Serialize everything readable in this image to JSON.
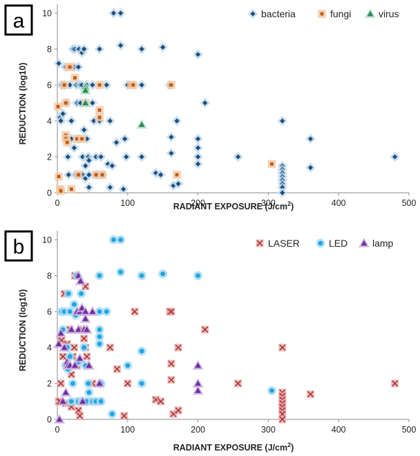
{
  "chart_data": [
    {
      "type": "scatter",
      "panel_label": "a",
      "xlabel": "RADIANT EXPOSURE (J/cm",
      "xlabel_sup": "2",
      "xlabel_end": ")",
      "ylabel": "REDUCTION (log10)",
      "xlim": [
        0,
        500
      ],
      "ylim": [
        0,
        10.5
      ],
      "xticks": [
        "0",
        "100",
        "200",
        "300",
        "400",
        "500"
      ],
      "yticks": [
        "0",
        "2",
        "4",
        "6",
        "8",
        "10"
      ],
      "grid": false,
      "legend_position": "top-right",
      "series": [
        {
          "name": "bacteria",
          "marker": "diamond",
          "color": "#1f4e79",
          "halo": "#bcd7ec",
          "points": [
            [
              2,
              7.2
            ],
            [
              4,
              4.2
            ],
            [
              5,
              4.0
            ],
            [
              6,
              6.0
            ],
            [
              8,
              4.4
            ],
            [
              10,
              6.0
            ],
            [
              12,
              7.0
            ],
            [
              13,
              5.0
            ],
            [
              15,
              3.0
            ],
            [
              15,
              2.0
            ],
            [
              16,
              1.0
            ],
            [
              18,
              6.0
            ],
            [
              20,
              4.0
            ],
            [
              20,
              3.0
            ],
            [
              22,
              8.0
            ],
            [
              24,
              7.0
            ],
            [
              24,
              2.5
            ],
            [
              25,
              8.0
            ],
            [
              26,
              1.0
            ],
            [
              27,
              6.0
            ],
            [
              28,
              5.0
            ],
            [
              30,
              7.0
            ],
            [
              30,
              3.0
            ],
            [
              30,
              1.0
            ],
            [
              31,
              8.0
            ],
            [
              32,
              6.0
            ],
            [
              33,
              5.0
            ],
            [
              35,
              7.8
            ],
            [
              35,
              6.0
            ],
            [
              36,
              2.0
            ],
            [
              36,
              1.0
            ],
            [
              38,
              8.0
            ],
            [
              38,
              3.5
            ],
            [
              40,
              1.5
            ],
            [
              40,
              0.8
            ],
            [
              42,
              6.0
            ],
            [
              42,
              3.0
            ],
            [
              44,
              2.0
            ],
            [
              45,
              1.8
            ],
            [
              45,
              1.0
            ],
            [
              45,
              0.3
            ],
            [
              50,
              6.0
            ],
            [
              50,
              5.0
            ],
            [
              52,
              4.0
            ],
            [
              55,
              2.0
            ],
            [
              56,
              1.0
            ],
            [
              60,
              8.0
            ],
            [
              60,
              4.0
            ],
            [
              62,
              2.0
            ],
            [
              64,
              1.0
            ],
            [
              70,
              6.0
            ],
            [
              72,
              1.6
            ],
            [
              75,
              4.0
            ],
            [
              75,
              0.3
            ],
            [
              78,
              1.5
            ],
            [
              80,
              10.0
            ],
            [
              84,
              2.8
            ],
            [
              90,
              8.2
            ],
            [
              90,
              10.0
            ],
            [
              94,
              0.2
            ],
            [
              96,
              3.0
            ],
            [
              98,
              2.0
            ],
            [
              100,
              6.0
            ],
            [
              120,
              8.0
            ],
            [
              120,
              6.0
            ],
            [
              120,
              2.0
            ],
            [
              140,
              1.1
            ],
            [
              147,
              1.0
            ],
            [
              150,
              8.1
            ],
            [
              160,
              6.0
            ],
            [
              162,
              3.1
            ],
            [
              162,
              2.2
            ],
            [
              165,
              0.4
            ],
            [
              170,
              4.0
            ],
            [
              172,
              0.5
            ],
            [
              200,
              7.7
            ],
            [
              200,
              3.0
            ],
            [
              200,
              2.5
            ],
            [
              200,
              2.0
            ],
            [
              200,
              1.6
            ],
            [
              210,
              5.0
            ],
            [
              257,
              2.0
            ],
            [
              320,
              4.0
            ],
            [
              320,
              1.5
            ],
            [
              320,
              1.3
            ],
            [
              320,
              1.1
            ],
            [
              320,
              0.9
            ],
            [
              320,
              0.7
            ],
            [
              320,
              0.5
            ],
            [
              320,
              0.3
            ],
            [
              320,
              0.0
            ],
            [
              360,
              3.0
            ],
            [
              360,
              1.4
            ],
            [
              480,
              2.0
            ]
          ]
        },
        {
          "name": "fungi",
          "marker": "square",
          "color": "#c55a11",
          "halo": "#f2c9a8",
          "points": [
            [
              1,
              4.8
            ],
            [
              2,
              0.9
            ],
            [
              4,
              0.2
            ],
            [
              5,
              0.1
            ],
            [
              10,
              6.0
            ],
            [
              12,
              5.0
            ],
            [
              12,
              3.2
            ],
            [
              12,
              3.0
            ],
            [
              14,
              2.8
            ],
            [
              16,
              7.0
            ],
            [
              18,
              7.0
            ],
            [
              20,
              0.2
            ],
            [
              25,
              6.4
            ],
            [
              28,
              3.0
            ],
            [
              30,
              1.0
            ],
            [
              35,
              3.0
            ],
            [
              40,
              5.0
            ],
            [
              55,
              1.0
            ],
            [
              60,
              6.0
            ],
            [
              60,
              4.6
            ],
            [
              60,
              4.2
            ],
            [
              64,
              1.0
            ],
            [
              105,
              6.0
            ],
            [
              108,
              6.0
            ],
            [
              162,
              6.0
            ],
            [
              170,
              1.0
            ],
            [
              305,
              1.6
            ]
          ]
        },
        {
          "name": "virus",
          "marker": "triangle",
          "color": "#2e8b57",
          "halo": "#b6e3c8",
          "points": [
            [
              40,
              5.9
            ],
            [
              40,
              5.7
            ],
            [
              40,
              5.0
            ],
            [
              120,
              3.8
            ]
          ]
        }
      ]
    },
    {
      "type": "scatter",
      "panel_label": "b",
      "xlabel": "RADIANT EXPOSURE (J/cm",
      "xlabel_sup": "2",
      "xlabel_end": ")",
      "ylabel": "REDUCTION (log10)",
      "xlim": [
        0,
        500
      ],
      "ylim": [
        0,
        10.5
      ],
      "xticks": [
        "0",
        "100",
        "200",
        "300",
        "400",
        "500"
      ],
      "yticks": [
        "0",
        "2",
        "4",
        "6",
        "8",
        "10"
      ],
      "grid": false,
      "legend_position": "top-right",
      "series": [
        {
          "name": "LASER",
          "marker": "x",
          "color": "#a9373b",
          "halo": "#e8a9a6",
          "points": [
            [
              2,
              1.0
            ],
            [
              4,
              1.0
            ],
            [
              5,
              2.0
            ],
            [
              6,
              4.4
            ],
            [
              8,
              3.5
            ],
            [
              10,
              7.0
            ],
            [
              12,
              0.9
            ],
            [
              14,
              4.2
            ],
            [
              15,
              3.0
            ],
            [
              18,
              5.0
            ],
            [
              20,
              2.5
            ],
            [
              20,
              0.7
            ],
            [
              22,
              3.5
            ],
            [
              24,
              4.0
            ],
            [
              25,
              8.0
            ],
            [
              28,
              3.0
            ],
            [
              30,
              1.0
            ],
            [
              30,
              0.5
            ],
            [
              32,
              0.2
            ],
            [
              35,
              5.0
            ],
            [
              38,
              4.5
            ],
            [
              40,
              7.4
            ],
            [
              40,
              4.0
            ],
            [
              42,
              3.5
            ],
            [
              45,
              1.0
            ],
            [
              50,
              2.0
            ],
            [
              60,
              1.0
            ],
            [
              75,
              4.0
            ],
            [
              85,
              2.8
            ],
            [
              95,
              0.2
            ],
            [
              100,
              2.0
            ],
            [
              110,
              6.0
            ],
            [
              140,
              1.1
            ],
            [
              147,
              1.0
            ],
            [
              160,
              6.0
            ],
            [
              162,
              6.0
            ],
            [
              162,
              3.1
            ],
            [
              162,
              2.2
            ],
            [
              165,
              0.3
            ],
            [
              172,
              0.5
            ],
            [
              172,
              4.0
            ],
            [
              210,
              5.0
            ],
            [
              257,
              2.0
            ],
            [
              320,
              4.0
            ],
            [
              320,
              1.5
            ],
            [
              320,
              1.3
            ],
            [
              320,
              1.1
            ],
            [
              320,
              0.9
            ],
            [
              320,
              0.7
            ],
            [
              320,
              0.5
            ],
            [
              320,
              0.3
            ],
            [
              320,
              0.0
            ],
            [
              360,
              1.4
            ],
            [
              480,
              2.0
            ]
          ]
        },
        {
          "name": "LED",
          "marker": "circle",
          "color": "#1fa6e0",
          "halo": "#a9dcf4",
          "points": [
            [
              6,
              6.0
            ],
            [
              8,
              5.0
            ],
            [
              10,
              6.0
            ],
            [
              12,
              3.0
            ],
            [
              14,
              4.0
            ],
            [
              15,
              2.8
            ],
            [
              16,
              7.0
            ],
            [
              18,
              6.0
            ],
            [
              18,
              3.5
            ],
            [
              20,
              1.0
            ],
            [
              22,
              2.0
            ],
            [
              24,
              6.4
            ],
            [
              26,
              5.8
            ],
            [
              28,
              8.0
            ],
            [
              30,
              3.2
            ],
            [
              30,
              1.0
            ],
            [
              32,
              6.0
            ],
            [
              34,
              7.0
            ],
            [
              35,
              1.0
            ],
            [
              36,
              1.0
            ],
            [
              38,
              4.0
            ],
            [
              40,
              3.0
            ],
            [
              42,
              1.0
            ],
            [
              44,
              2.0
            ],
            [
              45,
              1.5
            ],
            [
              50,
              1.0
            ],
            [
              55,
              1.0
            ],
            [
              60,
              8.0
            ],
            [
              60,
              6.0
            ],
            [
              60,
              5.0
            ],
            [
              60,
              4.6
            ],
            [
              60,
              4.2
            ],
            [
              62,
              1.0
            ],
            [
              62,
              2.0
            ],
            [
              70,
              6.0
            ],
            [
              78,
              0.3
            ],
            [
              80,
              10.0
            ],
            [
              90,
              10.0
            ],
            [
              90,
              8.2
            ],
            [
              100,
              3.0
            ],
            [
              120,
              8.0
            ],
            [
              120,
              3.8
            ],
            [
              120,
              2.0
            ],
            [
              150,
              8.1
            ],
            [
              200,
              8.0
            ],
            [
              305,
              1.6
            ]
          ]
        },
        {
          "name": "lamp",
          "marker": "triangle",
          "color": "#7030a0",
          "halo": "#cdb2e0",
          "points": [
            [
              2,
              4.2
            ],
            [
              3,
              0.0
            ],
            [
              5,
              4.8
            ],
            [
              8,
              1.0
            ],
            [
              10,
              4.0
            ],
            [
              12,
              1.5
            ],
            [
              14,
              3.2
            ],
            [
              15,
              3.0
            ],
            [
              18,
              3.0
            ],
            [
              20,
              5.0
            ],
            [
              25,
              3.0
            ],
            [
              28,
              6.0
            ],
            [
              30,
              8.0
            ],
            [
              30,
              5.0
            ],
            [
              32,
              6.0
            ],
            [
              32,
              3.4
            ],
            [
              33,
              7.7
            ],
            [
              35,
              6.2
            ],
            [
              36,
              1.0
            ],
            [
              38,
              5.0
            ],
            [
              40,
              6.0
            ],
            [
              40,
              5.6
            ],
            [
              42,
              5.0
            ],
            [
              45,
              3.0
            ],
            [
              50,
              6.0
            ],
            [
              60,
              2.0
            ],
            [
              200,
              3.0
            ],
            [
              200,
              2.0
            ],
            [
              200,
              1.6
            ]
          ]
        }
      ]
    }
  ]
}
